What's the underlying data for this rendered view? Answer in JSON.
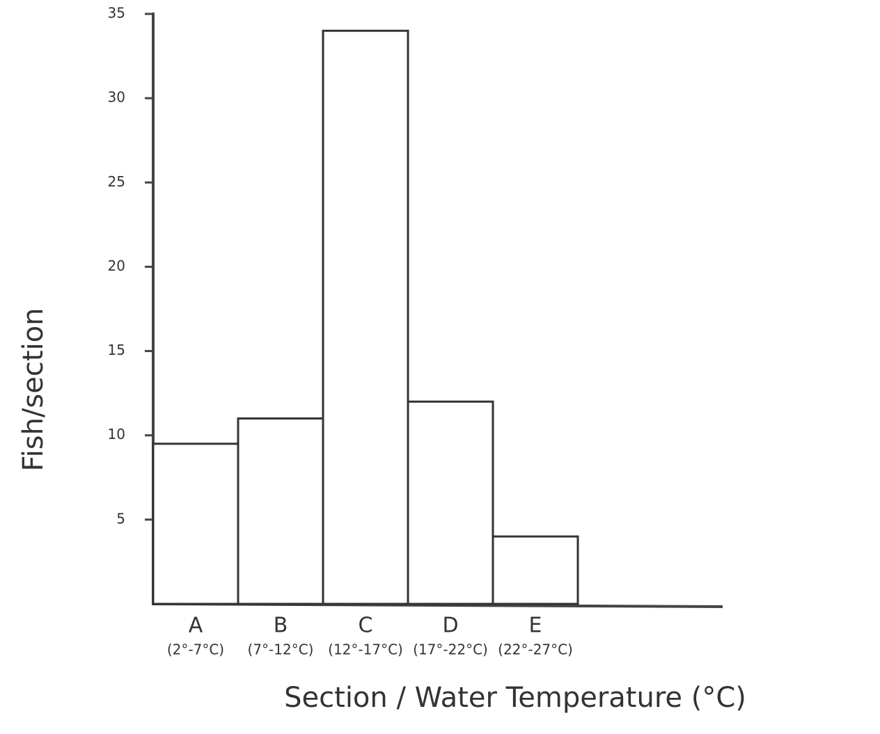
{
  "chart_data": {
    "type": "bar",
    "categories": [
      "A",
      "B",
      "C",
      "D",
      "E"
    ],
    "category_sublabels": [
      "(2°-7°C)",
      "(7°-12°C)",
      "(12°-17°C)",
      "(17°-22°C)",
      "(22°-27°C)"
    ],
    "values": [
      9.5,
      11,
      34,
      12,
      4
    ],
    "color": "#ffffff",
    "x_label": "Section / Water Temperature (°C)",
    "y_label": "Fish/section",
    "ylim": [
      0,
      35
    ],
    "yticks": [
      5,
      10,
      15,
      20,
      25,
      30,
      35
    ],
    "grid": false
  }
}
